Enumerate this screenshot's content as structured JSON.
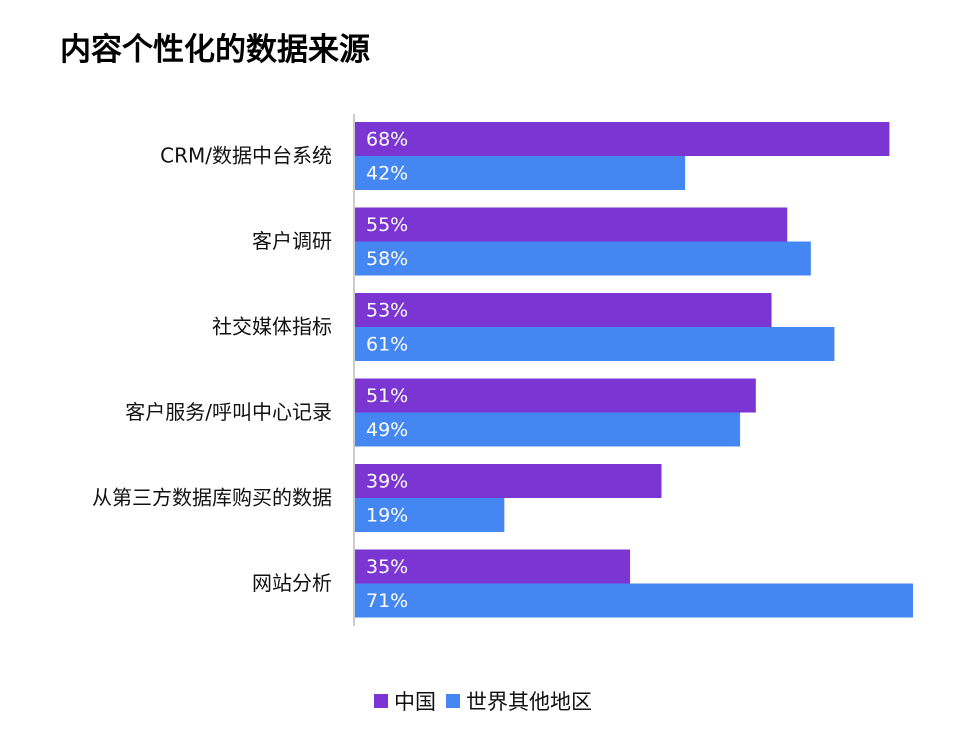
{
  "title": "内容个性化的数据来源",
  "colors": {
    "china": "#7b35d2",
    "world": "#4486f2",
    "axis": "#bbbbbb",
    "label_text": "#ffffff"
  },
  "chart_data": {
    "type": "bar",
    "orientation": "horizontal",
    "title": "内容个性化的数据来源",
    "categories": [
      "CRM/数据中台系统",
      "客户调研",
      "社交媒体指标",
      "客户服务/呼叫中心记录",
      "从第三方数据库购买的数据",
      "网站分析"
    ],
    "series": [
      {
        "name": "中国",
        "values": [
          68,
          55,
          53,
          51,
          39,
          35
        ],
        "labels": [
          "68%",
          "55%",
          "53%",
          "51%",
          "39%",
          "35%"
        ]
      },
      {
        "name": "世界其他地区",
        "values": [
          42,
          58,
          61,
          49,
          19,
          71
        ],
        "labels": [
          "42%",
          "58%",
          "61%",
          "49%",
          "19%",
          "71%"
        ]
      }
    ],
    "xlim": [
      0,
      71
    ],
    "grid": false,
    "legend_position": "bottom"
  },
  "legend": {
    "china": "中国",
    "world": "世界其他地区"
  }
}
